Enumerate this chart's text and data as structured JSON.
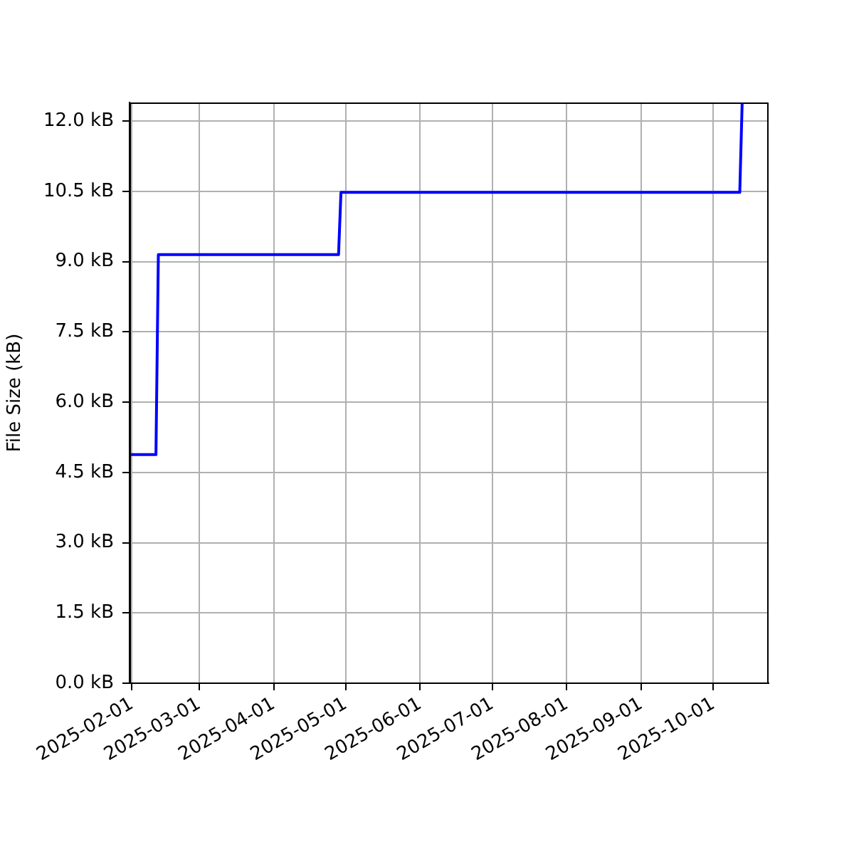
{
  "chart_data": {
    "type": "line",
    "ylabel": "File Size (kB)",
    "x": [
      "2025-01-31",
      "2025-02-11",
      "2025-02-12",
      "2025-04-28",
      "2025-04-29",
      "2025-10-12",
      "2025-10-13"
    ],
    "series": [
      {
        "color": "#0000ff",
        "values": [
          4.88,
          4.88,
          9.15,
          9.15,
          10.48,
          10.48,
          12.4
        ]
      }
    ],
    "xlim": [
      "2025-01-31",
      "2025-10-24"
    ],
    "xticks": [
      "2025-02-01",
      "2025-03-01",
      "2025-04-01",
      "2025-05-01",
      "2025-06-01",
      "2025-07-01",
      "2025-08-01",
      "2025-09-01",
      "2025-10-01"
    ],
    "ylim": [
      0,
      12.4
    ],
    "yticks": [
      {
        "value": 0,
        "label": "0.0 kB"
      },
      {
        "value": 1.5,
        "label": "1.5 kB"
      },
      {
        "value": 3,
        "label": "3.0 kB"
      },
      {
        "value": 4.5,
        "label": "4.5 kB"
      },
      {
        "value": 6,
        "label": "6.0 kB"
      },
      {
        "value": 7.5,
        "label": "7.5 kB"
      },
      {
        "value": 9,
        "label": "9.0 kB"
      },
      {
        "value": 10.5,
        "label": "10.5 kB"
      },
      {
        "value": 12,
        "label": "12.0 kB"
      }
    ],
    "grid": true,
    "marker": "none",
    "line_style": "solid"
  }
}
